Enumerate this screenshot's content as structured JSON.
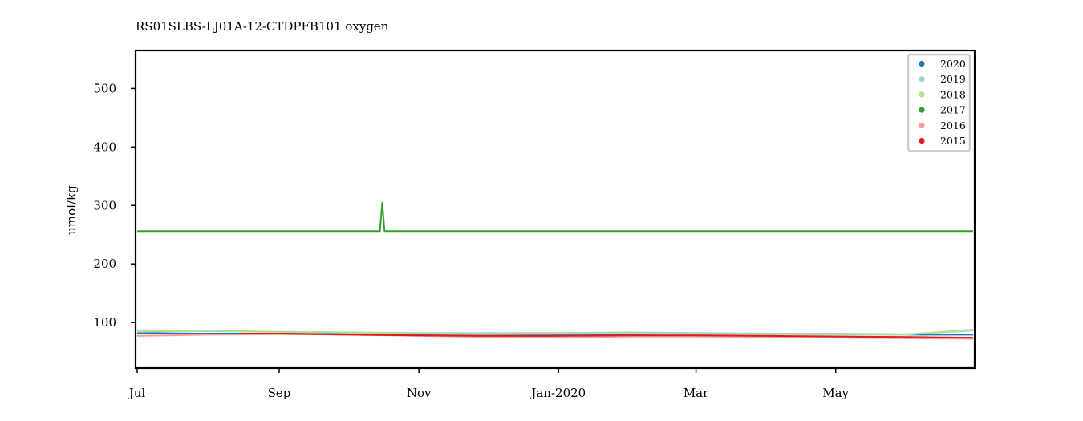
{
  "chart_data": {
    "type": "line",
    "title": "RS01SLBS-LJ01A-12-CTDPFB101 oxygen",
    "ylabel": "umol/kg",
    "xlabel": "",
    "xlim": [
      "2019-07-01",
      "2020-06-30"
    ],
    "ylim": [
      22,
      565
    ],
    "x_ticks": [
      {
        "date": "2019-07-01",
        "label": "Jul"
      },
      {
        "date": "2019-09-01",
        "label": "Sep"
      },
      {
        "date": "2019-11-01",
        "label": "Nov"
      },
      {
        "date": "2020-01-01",
        "label": "Jan-2020"
      },
      {
        "date": "2020-03-01",
        "label": "Mar"
      },
      {
        "date": "2020-05-01",
        "label": "May"
      }
    ],
    "y_ticks": [
      100,
      200,
      300,
      400,
      500
    ],
    "legend_position": "top-right",
    "grid": false,
    "series": [
      {
        "name": "2020",
        "color": "#1f77b4",
        "x": [
          "2019-07-01",
          "2019-08-01",
          "2019-09-01",
          "2019-10-01",
          "2019-11-01",
          "2019-12-01",
          "2020-01-01",
          "2020-02-01",
          "2020-03-01",
          "2020-04-01",
          "2020-05-01",
          "2020-06-01",
          "2020-06-30"
        ],
        "y": [
          82,
          81,
          81,
          80,
          79,
          79,
          80,
          80,
          81,
          80,
          80,
          79,
          79
        ]
      },
      {
        "name": "2019",
        "color": "#a6cee3",
        "x": [
          "2019-07-01",
          "2019-08-01",
          "2019-09-01",
          "2019-10-01",
          "2019-11-01",
          "2019-12-01",
          "2020-01-01",
          "2020-02-01",
          "2020-03-01",
          "2020-04-01",
          "2020-05-01",
          "2020-06-01",
          "2020-06-30"
        ],
        "y": [
          87,
          85,
          84,
          83,
          82,
          82,
          82,
          83,
          82,
          81,
          81,
          80,
          86
        ]
      },
      {
        "name": "2018",
        "color": "#b2df8a",
        "x": [
          "2019-07-01",
          "2019-08-01",
          "2019-09-01",
          "2019-10-01",
          "2019-11-01",
          "2019-12-01",
          "2020-01-01",
          "2020-02-01",
          "2020-03-01",
          "2020-04-01",
          "2020-05-01",
          "2020-06-01",
          "2020-06-30"
        ],
        "y": [
          84,
          86,
          84,
          83,
          81,
          80,
          81,
          81,
          80,
          80,
          79,
          79,
          88
        ]
      },
      {
        "name": "2017",
        "color": "#33a02c",
        "x": [
          "2019-07-01",
          "2019-07-15",
          "2019-08-01",
          "2019-09-01",
          "2019-10-01",
          "2019-10-15",
          "2019-10-16",
          "2019-10-17",
          "2019-11-01",
          "2019-12-01",
          "2020-01-01",
          "2020-02-01",
          "2020-03-01",
          "2020-04-01",
          "2020-05-01",
          "2020-06-01",
          "2020-06-30"
        ],
        "y": [
          256,
          256,
          256,
          256,
          256,
          256,
          305,
          256,
          256,
          256,
          256,
          256,
          256,
          256,
          256,
          256,
          256
        ]
      },
      {
        "name": "2016",
        "color": "#fb9a99",
        "x": [
          "2019-07-01",
          "2019-08-01",
          "2019-09-01",
          "2019-10-01",
          "2019-11-01",
          "2019-12-01",
          "2020-01-01",
          "2020-02-01",
          "2020-03-01",
          "2020-04-01",
          "2020-05-01",
          "2020-06-01",
          "2020-06-30"
        ],
        "y": [
          77,
          79,
          80,
          79,
          77,
          75,
          74,
          76,
          76,
          75,
          74,
          73,
          72
        ]
      },
      {
        "name": "2015",
        "color": "#e31a1c",
        "x": [
          "2019-08-15",
          "2019-09-01",
          "2019-10-01",
          "2019-11-01",
          "2019-12-01",
          "2020-01-01",
          "2020-02-01",
          "2020-03-01",
          "2020-04-01",
          "2020-05-01",
          "2020-06-01",
          "2020-06-30"
        ],
        "y": [
          81,
          81,
          79,
          78,
          77,
          77,
          78,
          78,
          77,
          76,
          75,
          74
        ]
      }
    ]
  }
}
